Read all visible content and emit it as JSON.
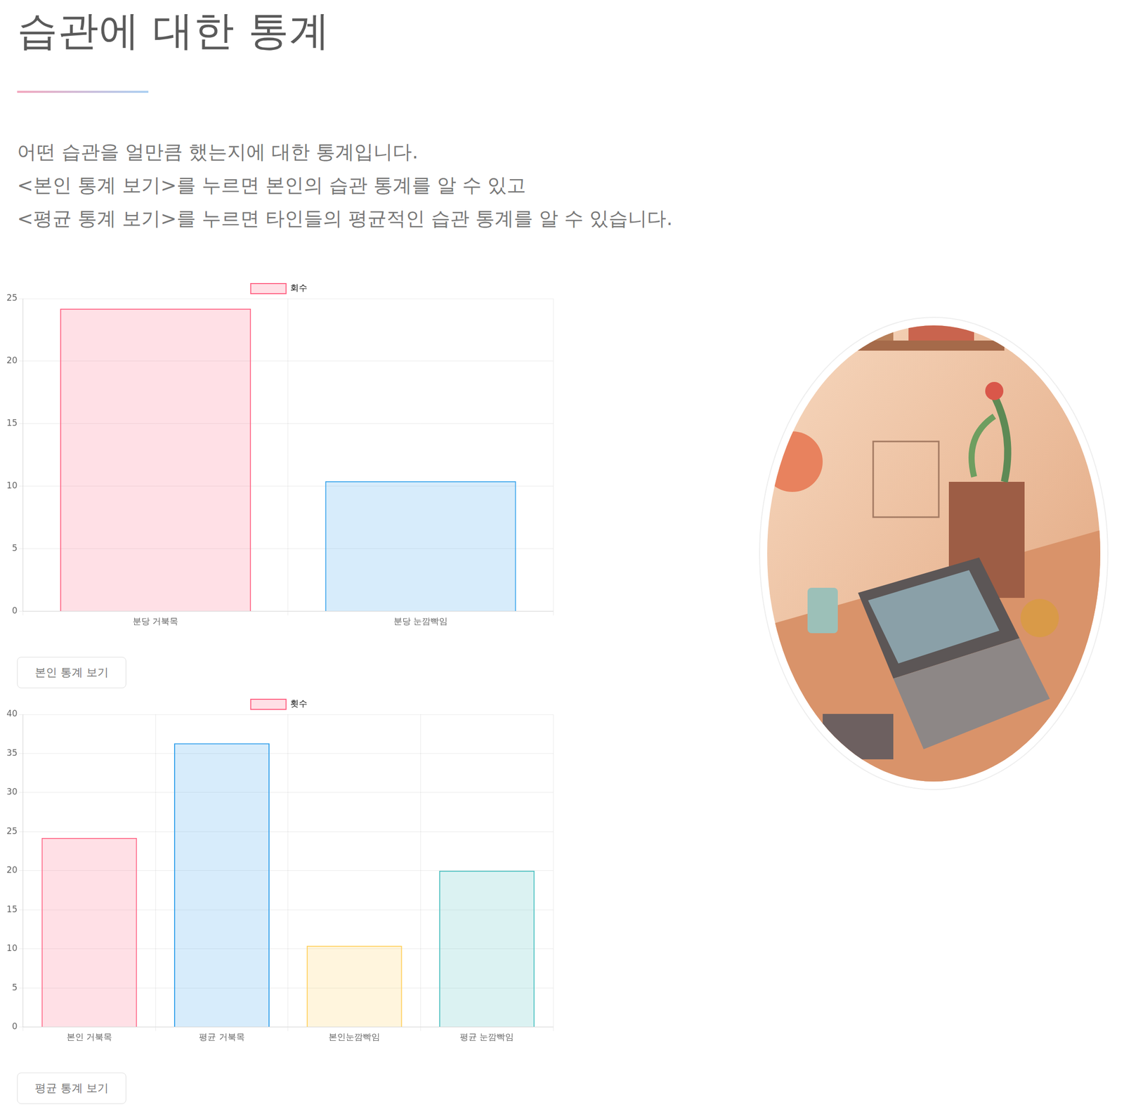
{
  "page": {
    "title": "습관에 대한 통계",
    "paragraph": [
      "어떤 습관을 얼만큼 했는지에 대한 통계입니다.",
      "<본인 통계 보기>를 누르면 본인의 습관 통계를 알 수 있고",
      "<평균 통계 보기>를 누르면 타인들의 평균적인 습관 통계를 알 수 있습니다."
    ],
    "buttons": [
      "본인 통계 보기",
      "평균 통계 보기"
    ]
  },
  "chart_data": [
    {
      "type": "bar",
      "categories": [
        "분당 거북목",
        "분당 눈깜빡임"
      ],
      "series": [
        {
          "name": "회수",
          "values": [
            24.2,
            10.4
          ],
          "colors": [
            "#ff6384",
            "#36a2eb"
          ]
        }
      ],
      "ylim": [
        0,
        25
      ],
      "yticks": [
        0,
        5,
        10,
        15,
        20,
        25
      ],
      "grid": true,
      "legend": "top"
    },
    {
      "type": "bar",
      "categories": [
        "본인 거북목",
        "평균 거북목",
        "본인눈깜빡임",
        "평균 눈깜빡임"
      ],
      "series": [
        {
          "name": "횟수",
          "values": [
            24.2,
            36.3,
            10.4,
            20
          ],
          "colors": [
            "#ff6384",
            "#36a2eb",
            "#ffce56",
            "#4bc0c0"
          ]
        }
      ],
      "ylim": [
        0,
        40
      ],
      "yticks": [
        0,
        5,
        10,
        15,
        20,
        25,
        30,
        35,
        40
      ],
      "grid": true,
      "legend": "top"
    }
  ]
}
